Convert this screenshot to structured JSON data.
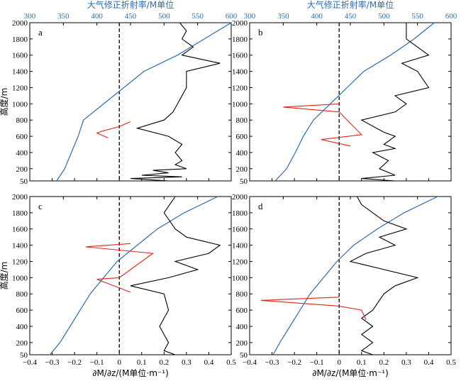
{
  "chart_data": {
    "type": "line",
    "layout": "2x2 panels",
    "top_axis": {
      "label": "大气修正折射率/M单位",
      "ticks": [
        300,
        350,
        400,
        450,
        500,
        550,
        600
      ],
      "range": [
        300,
        600
      ]
    },
    "bottom_axis": {
      "label": "∂M/∂z/(M单位·m⁻¹)",
      "ticks": [
        -0.4,
        -0.3,
        -0.2,
        -0.1,
        0,
        0.1,
        0.2,
        0.3,
        0.4,
        0.5
      ],
      "range": [
        -0.4,
        0.5
      ]
    },
    "y_axis": {
      "label": "高度/m",
      "ticks": [
        50,
        200,
        400,
        600,
        800,
        1000,
        1200,
        1400,
        1600,
        1800,
        2000
      ],
      "range": [
        50,
        2000
      ]
    },
    "colors": {
      "modified_refractivity": "#2b6cb0",
      "gradient_black": "#000000",
      "gradient_red": "#e3231b",
      "zero_line": "#000000"
    },
    "panels": [
      {
        "letter": "a",
        "blue_M": [
          [
            340,
            50
          ],
          [
            352,
            200
          ],
          [
            362,
            400
          ],
          [
            372,
            600
          ],
          [
            380,
            800
          ],
          [
            410,
            1000
          ],
          [
            440,
            1200
          ],
          [
            470,
            1400
          ],
          [
            520,
            1600
          ],
          [
            560,
            1800
          ],
          [
            600,
            2000
          ]
        ],
        "black_gradient": [
          [
            0.22,
            50
          ],
          [
            0.05,
            80
          ],
          [
            0.28,
            100
          ],
          [
            0.1,
            120
          ],
          [
            0.22,
            150
          ],
          [
            0.15,
            180
          ],
          [
            0.3,
            200
          ],
          [
            0.25,
            250
          ],
          [
            0.28,
            300
          ],
          [
            0.25,
            400
          ],
          [
            0.28,
            500
          ],
          [
            0.22,
            600
          ],
          [
            0.08,
            700
          ],
          [
            0.2,
            800
          ],
          [
            0.24,
            900
          ],
          [
            0.26,
            1000
          ],
          [
            0.3,
            1200
          ],
          [
            0.3,
            1400
          ],
          [
            0.45,
            1500
          ],
          [
            0.28,
            1600
          ],
          [
            0.33,
            1700
          ],
          [
            0.28,
            1800
          ],
          [
            0.3,
            1900
          ],
          [
            0.27,
            2000
          ]
        ],
        "red_gradient": [
          [
            -0.05,
            580
          ],
          [
            -0.1,
            640
          ],
          [
            -0.08,
            660
          ],
          [
            0.0,
            720
          ],
          [
            0.05,
            780
          ]
        ]
      },
      {
        "letter": "b",
        "blue_M": [
          [
            338,
            50
          ],
          [
            355,
            200
          ],
          [
            368,
            400
          ],
          [
            380,
            600
          ],
          [
            395,
            800
          ],
          [
            420,
            1000
          ],
          [
            445,
            1200
          ],
          [
            470,
            1400
          ],
          [
            510,
            1600
          ],
          [
            545,
            1800
          ],
          [
            575,
            2000
          ]
        ],
        "black_gradient": [
          [
            0.25,
            50
          ],
          [
            0.1,
            80
          ],
          [
            0.25,
            120
          ],
          [
            0.18,
            200
          ],
          [
            0.22,
            300
          ],
          [
            0.15,
            400
          ],
          [
            0.25,
            450
          ],
          [
            0.2,
            500
          ],
          [
            0.25,
            600
          ],
          [
            0.2,
            650
          ],
          [
            0.1,
            800
          ],
          [
            0.25,
            900
          ],
          [
            0.3,
            1000
          ],
          [
            0.25,
            1100
          ],
          [
            0.4,
            1200
          ],
          [
            0.35,
            1400
          ],
          [
            0.28,
            1500
          ],
          [
            0.4,
            1600
          ],
          [
            0.35,
            1700
          ],
          [
            0.3,
            1800
          ],
          [
            0.3,
            2000
          ]
        ],
        "red_gradient": [
          [
            0.05,
            480
          ],
          [
            -0.08,
            560
          ],
          [
            0.1,
            620
          ],
          [
            0.0,
            900
          ],
          [
            -0.25,
            960
          ],
          [
            0.0,
            1000
          ]
        ]
      },
      {
        "letter": "c",
        "blue_M": [
          [
            330,
            50
          ],
          [
            345,
            200
          ],
          [
            360,
            400
          ],
          [
            375,
            600
          ],
          [
            390,
            800
          ],
          [
            410,
            1000
          ],
          [
            430,
            1200
          ],
          [
            460,
            1400
          ],
          [
            490,
            1600
          ],
          [
            530,
            1800
          ],
          [
            580,
            2000
          ]
        ],
        "black_gradient": [
          [
            0.25,
            50
          ],
          [
            0.2,
            100
          ],
          [
            0.22,
            200
          ],
          [
            0.2,
            300
          ],
          [
            0.18,
            400
          ],
          [
            0.22,
            600
          ],
          [
            0.2,
            800
          ],
          [
            0.05,
            900
          ],
          [
            0.22,
            1000
          ],
          [
            0.35,
            1100
          ],
          [
            0.25,
            1200
          ],
          [
            0.4,
            1300
          ],
          [
            0.45,
            1400
          ],
          [
            0.3,
            1500
          ],
          [
            0.25,
            1600
          ],
          [
            0.2,
            1800
          ],
          [
            0.25,
            2000
          ]
        ],
        "red_gradient": [
          [
            0.05,
            820
          ],
          [
            -0.1,
            980
          ],
          [
            0.0,
            1000
          ],
          [
            0.15,
            1300
          ],
          [
            -0.15,
            1380
          ],
          [
            0.05,
            1420
          ]
        ]
      },
      {
        "letter": "d",
        "blue_M": [
          [
            335,
            50
          ],
          [
            345,
            200
          ],
          [
            360,
            400
          ],
          [
            375,
            600
          ],
          [
            390,
            800
          ],
          [
            410,
            1000
          ],
          [
            430,
            1200
          ],
          [
            455,
            1400
          ],
          [
            490,
            1600
          ],
          [
            530,
            1800
          ],
          [
            580,
            2000
          ]
        ],
        "black_gradient": [
          [
            0.15,
            50
          ],
          [
            0.1,
            100
          ],
          [
            0.15,
            200
          ],
          [
            0.1,
            300
          ],
          [
            0.15,
            400
          ],
          [
            0.1,
            500
          ],
          [
            0.15,
            600
          ],
          [
            0.2,
            800
          ],
          [
            0.25,
            900
          ],
          [
            0.35,
            1000
          ],
          [
            0.2,
            1100
          ],
          [
            0.05,
            1200
          ],
          [
            0.12,
            1300
          ],
          [
            0.25,
            1400
          ],
          [
            0.18,
            1500
          ],
          [
            0.3,
            1600
          ],
          [
            0.2,
            1700
          ],
          [
            0.15,
            1800
          ],
          [
            0.1,
            1900
          ],
          [
            0.08,
            2000
          ]
        ],
        "red_gradient": [
          [
            0.12,
            480
          ],
          [
            0.1,
            600
          ],
          [
            0.0,
            650
          ],
          [
            -0.35,
            720
          ],
          [
            0.0,
            760
          ]
        ]
      }
    ]
  }
}
